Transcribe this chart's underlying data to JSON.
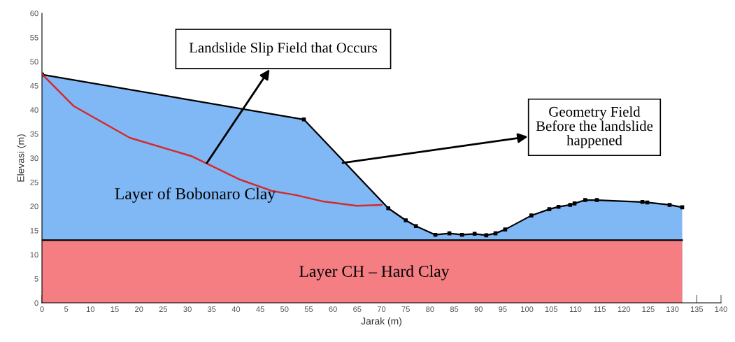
{
  "chart_data": {
    "type": "area",
    "xlabel": "Jarak (m)",
    "ylabel": "Elevasi (m)",
    "xlim": [
      0,
      140
    ],
    "ylim": [
      0,
      60
    ],
    "xticks": [
      0,
      5,
      10,
      15,
      20,
      25,
      30,
      35,
      40,
      45,
      50,
      55,
      60,
      65,
      70,
      75,
      80,
      85,
      90,
      95,
      100,
      105,
      110,
      115,
      120,
      125,
      130,
      135,
      140
    ],
    "yticks": [
      0,
      5,
      10,
      15,
      20,
      25,
      30,
      35,
      40,
      45,
      50,
      55,
      60
    ],
    "grid": false,
    "legend": false,
    "series": [
      {
        "color": "#80b8f6",
        "marker": "square",
        "x": [
          0,
          54,
          71.4,
          75.0,
          77.1,
          81.1,
          84.0,
          86.6,
          89.2,
          91.6,
          93.5,
          95.5,
          100.9,
          104.6,
          106.5,
          108.9,
          109.8,
          112.0,
          114.4,
          123.8,
          124.8,
          129.4,
          132
        ],
        "values": [
          47.3,
          38,
          19.6,
          17.1,
          15.9,
          14.1,
          14.4,
          14.1,
          14.3,
          14.0,
          14.4,
          15.2,
          18.1,
          19.4,
          19.9,
          20.3,
          20.6,
          21.3,
          21.3,
          20.9,
          20.8,
          20.3,
          19.8
        ]
      },
      {
        "color": "#f47e82",
        "x": [
          0,
          132
        ],
        "values": [
          13,
          13
        ]
      },
      {
        "type": "line",
        "color": "#d42a2a",
        "marker": "none",
        "x": [
          0,
          6.5,
          18.1,
          30.8,
          40.9,
          47.4,
          52.5,
          58.0,
          64.9,
          70
        ],
        "values": [
          47.4,
          40.8,
          34.2,
          30.4,
          25.5,
          23.2,
          22.3,
          21.0,
          20.1,
          20.3
        ]
      }
    ],
    "annotations": [
      {
        "text": "Landslide Slip Field that Occurs",
        "x": 34,
        "y": 29
      },
      {
        "text": "Geometry Field\nBefore the landslide\nhappened",
        "x": 62,
        "y": 29
      },
      "Layer of Bobonaro Clay",
      "Layer CH – Hard Clay"
    ]
  }
}
